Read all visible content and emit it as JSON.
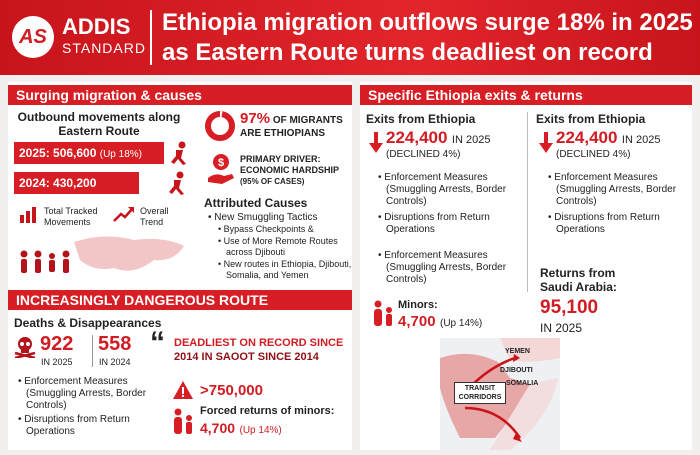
{
  "header": {
    "logo": "AS",
    "brand_top": "ADDIS",
    "brand_bottom": "STANDARD",
    "title_line1": "Ethiopia migration outflows surge 18% in 2025",
    "title_line2": "as Eastern Route turns deadliest on record"
  },
  "surging": {
    "heading": "Surging migration & causes",
    "subheading": "Outbound movements along Eastern Route",
    "bar_2025": "2025: 506,600",
    "bar_2025_change": "(Up 18%)",
    "bar_2024": "2024: 430,200",
    "legend_total": "Total Tracked Movements",
    "legend_trend": "Overall Trend",
    "share_value": "97%",
    "share_label_line1": "OF MIGRANTS",
    "share_label_line2": "ARE ETHIOPIANS",
    "driver_line1": "PRIMARY DRIVER:",
    "driver_line2": "ECONOMIC HARDSHIP",
    "driver_line3": "(95% OF CASES)",
    "causes_heading": "Attributed Causes",
    "causes": [
      "New Smuggling Tactics",
      "Bypass Checkpoints &",
      "Use of More Remote Routes across Djibouti",
      "New routes in Ethiopia, Djibouti, Somalia, and Yemen"
    ]
  },
  "dangerous": {
    "heading": "INCREASINGLY DANGEROUS ROUTE",
    "subheading": "Deaths & Disappearances",
    "deaths_2025": "922",
    "deaths_2025_label": "IN 2025",
    "deaths_2024": "558",
    "deaths_2024_label": "IN 2024",
    "quote_line1": "DEADLIEST ON RECORD SINCE",
    "quote_line2": "2014 IN SAOOT SINCE 2014",
    "bullets": [
      "Enforcement Measures (Smuggling Arrests, Border Controls)",
      "Disruptions from Return Operations"
    ],
    "returns_total": ">750,000",
    "minors_label": "Forced returns of minors:",
    "minors_value": "4,700",
    "minors_change": "(Up 14%)"
  },
  "exits": {
    "heading": "Specific Ethiopia exits & returns",
    "columns": [
      {
        "title": "Exits from Ethiopia",
        "value": "224,400",
        "value_label": "IN 2025",
        "change": "(DECLINED 4%)",
        "bullets": [
          "Enforcement Measures (Smuggling Arrests, Border Controls)",
          "Disruptions from Return Operations",
          "Enforcement Measures (Smuggling Arrests, Border Controls)"
        ],
        "minors_label": "Minors:",
        "minors_value": "4,700",
        "minors_change": "(Up 14%)"
      },
      {
        "title": "Exits from Ethiopia",
        "value": "224,400",
        "value_label": "IN 2025",
        "change": "(DECLINED 4%)",
        "bullets": [
          "Enforcement Measures (Smuggling Arrests, Border Controls)",
          "Disruptions from Return Operations"
        ],
        "returns_label": "Returns from Saudi Arabia:",
        "returns_value": "95,100",
        "returns_year": "IN 2025"
      }
    ],
    "map": {
      "yemen": "YEMEN",
      "djibouti": "DJIBOUTI",
      "somalia": "SOMALIA",
      "corridors": "TRANSIT CORRIDORS"
    }
  }
}
